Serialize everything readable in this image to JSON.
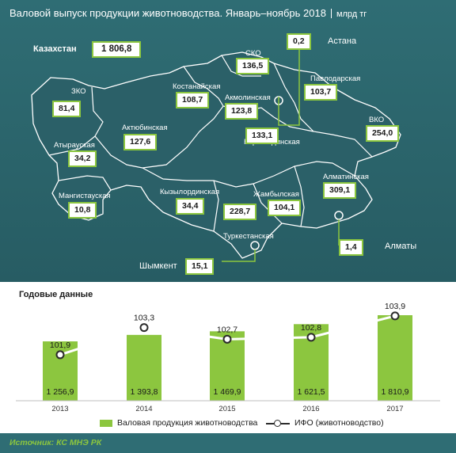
{
  "header": {
    "title": "Валовой выпуск продукции животноводства. Январь–ноябрь 2018",
    "unit": "млрд тг"
  },
  "total": {
    "label": "Казахстан",
    "value": "1 806,8"
  },
  "regions": [
    {
      "name": "ЗКО",
      "value": "81,4"
    },
    {
      "name": "Атырауская",
      "value": "34,2"
    },
    {
      "name": "Мангистауская",
      "value": "10,8"
    },
    {
      "name": "Актюбинская",
      "value": "127,6"
    },
    {
      "name": "Костанайская",
      "value": "108,7"
    },
    {
      "name": "СКО",
      "value": "136,5"
    },
    {
      "name": "Акмолинская",
      "value": "123,8"
    },
    {
      "name": "Павлодарская",
      "value": "103,7"
    },
    {
      "name": "ВКО",
      "value": "254,0"
    },
    {
      "name": "Карагандинская",
      "value": "133,1"
    },
    {
      "name": "Кызылординская",
      "value": "34,4"
    },
    {
      "name": "Жамбылская",
      "value": "104,1"
    },
    {
      "name": "Алматинская",
      "value": "309,1"
    },
    {
      "name": "Туркестанская",
      "value": "228,7"
    }
  ],
  "cities": [
    {
      "name": "Астана",
      "value": "0,2"
    },
    {
      "name": "Алматы",
      "value": "1,4"
    },
    {
      "name": "Шымкент",
      "value": "15,1"
    }
  ],
  "annual": {
    "title": "Годовые данные"
  },
  "chart_data": {
    "type": "bar",
    "categories": [
      "2013",
      "2014",
      "2015",
      "2016",
      "2017"
    ],
    "series": [
      {
        "name": "Валовая продукция животноводства",
        "type": "bar",
        "values": [
          1256.9,
          1393.8,
          1469.9,
          1621.5,
          1810.9
        ],
        "labels": [
          "1 256,9",
          "1 393,8",
          "1 469,9",
          "1 621,5",
          "1 810,9"
        ]
      },
      {
        "name": "ИФО (животноводство)",
        "type": "line",
        "values": [
          101.9,
          103.3,
          102.7,
          102.8,
          103.9
        ],
        "labels": [
          "101,9",
          "103,3",
          "102,7",
          "102,8",
          "103,9"
        ]
      }
    ],
    "title": "Годовые данные"
  },
  "legend": {
    "bar_label": "Валовая продукция животноводства",
    "line_label": "ИФО (животноводство)"
  },
  "colors": {
    "panel": "#2f6d74",
    "accent": "#8cc63f",
    "line": "#ffffff"
  },
  "source": "Источник: КС МНЭ РК"
}
